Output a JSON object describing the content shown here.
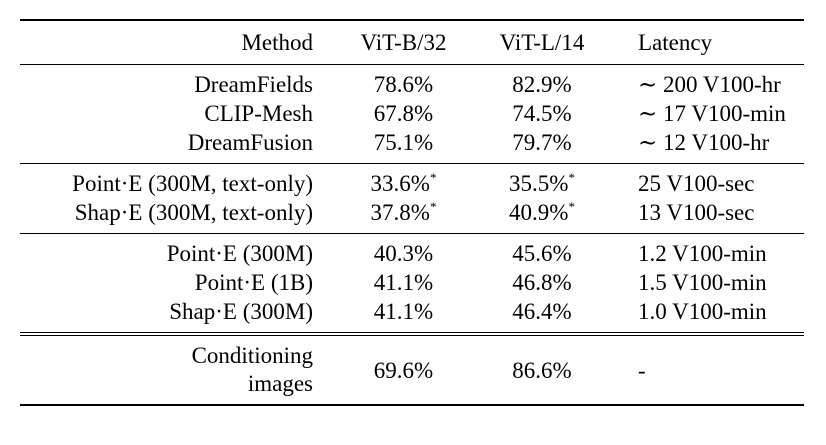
{
  "header": {
    "method": "Method",
    "vitb32": "ViT-B/32",
    "vitl14": "ViT-L/14",
    "latency": "Latency"
  },
  "groups": [
    [
      {
        "method": "DreamFields",
        "vitb32": "78.6%",
        "vitl14": "82.9%",
        "latency": "∼ 200 V100-hr"
      },
      {
        "method": "CLIP-Mesh",
        "vitb32": "67.8%",
        "vitl14": "74.5%",
        "latency": "∼ 17 V100-min"
      },
      {
        "method": "DreamFusion",
        "vitb32": "75.1%",
        "vitl14": "79.7%",
        "latency": "∼ 12 V100-hr"
      }
    ],
    [
      {
        "method": "Point·E (300M, text-only)",
        "vitb32": "33.6%",
        "vitb32_sup": "*",
        "vitl14": "35.5%",
        "vitl14_sup": "*",
        "latency": "25 V100-sec"
      },
      {
        "method": "Shap·E (300M, text-only)",
        "vitb32": "37.8%",
        "vitb32_sup": "*",
        "vitl14": "40.9%",
        "vitl14_sup": "*",
        "latency": "13 V100-sec"
      }
    ],
    [
      {
        "method": "Point·E (300M)",
        "vitb32": "40.3%",
        "vitl14": "45.6%",
        "latency": "1.2 V100-min"
      },
      {
        "method": "Point·E (1B)",
        "vitb32": "41.1%",
        "vitl14": "46.8%",
        "latency": "1.5 V100-min"
      },
      {
        "method": "Shap·E (300M)",
        "vitb32": "41.1%",
        "vitl14": "46.4%",
        "latency": "1.0 V100-min"
      }
    ]
  ],
  "conditioning": {
    "method_line1": "Conditioning",
    "method_line2": "images",
    "vitb32": "69.6%",
    "vitl14": "86.6%",
    "latency": "-"
  }
}
